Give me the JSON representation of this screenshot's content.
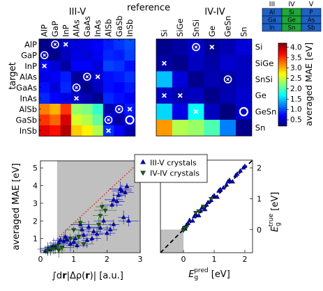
{
  "chart_data": [
    {
      "type": "heatmap",
      "panel": "III-V",
      "group_label": "III-V",
      "columns": [
        "AlP",
        "GaP",
        "InP",
        "AlAs",
        "GaAs",
        "InAs",
        "AlSb",
        "GaSb",
        "InSb"
      ],
      "rows": [
        "AlP",
        "GaP",
        "InP",
        "AlAs",
        "GaAs",
        "InAs",
        "AlSb",
        "GaSb",
        "InSb"
      ],
      "values": [
        [
          0.25,
          0.35,
          0.5,
          0.55,
          0.6,
          0.7,
          0.8,
          0.9,
          1.0
        ],
        [
          0.35,
          0.25,
          0.45,
          0.6,
          0.55,
          0.65,
          0.85,
          0.8,
          0.95
        ],
        [
          0.7,
          0.55,
          0.35,
          0.7,
          0.7,
          0.55,
          0.95,
          0.9,
          0.75
        ],
        [
          0.6,
          0.65,
          0.8,
          0.3,
          0.4,
          0.55,
          0.75,
          0.8,
          0.9
        ],
        [
          0.75,
          0.55,
          0.85,
          0.4,
          0.25,
          0.45,
          0.75,
          0.7,
          0.8
        ],
        [
          0.85,
          0.7,
          0.6,
          0.5,
          0.4,
          0.25,
          0.85,
          0.75,
          0.65
        ],
        [
          3.2,
          3.0,
          3.5,
          2.3,
          2.2,
          1.9,
          0.4,
          0.55,
          0.8
        ],
        [
          3.5,
          3.3,
          3.85,
          2.55,
          2.4,
          2.1,
          0.6,
          0.35,
          0.7
        ],
        [
          3.8,
          3.65,
          4.0,
          2.9,
          2.75,
          2.4,
          0.9,
          0.7,
          0.4
        ]
      ],
      "markers": [
        {
          "row": "AlP",
          "col": "GaP",
          "kind": "circle-cross"
        },
        {
          "row": "AlP",
          "col": "InP",
          "kind": "cross"
        },
        {
          "row": "GaP",
          "col": "AlP",
          "kind": "circle-cross"
        },
        {
          "row": "InP",
          "col": "AlP",
          "kind": "cross"
        },
        {
          "row": "AlAs",
          "col": "GaAs",
          "kind": "circle-cross"
        },
        {
          "row": "AlAs",
          "col": "InAs",
          "kind": "cross"
        },
        {
          "row": "GaAs",
          "col": "AlAs",
          "kind": "circle-cross"
        },
        {
          "row": "InAs",
          "col": "AlAs",
          "kind": "cross"
        },
        {
          "row": "AlSb",
          "col": "GaSb",
          "kind": "circle-cross"
        },
        {
          "row": "AlSb",
          "col": "InSb",
          "kind": "cross"
        },
        {
          "row": "GaSb",
          "col": "AlSb",
          "kind": "circle-cross"
        },
        {
          "row": "GaSb",
          "col": "InSb",
          "kind": "circle"
        },
        {
          "row": "InSb",
          "col": "AlSb",
          "kind": "cross"
        }
      ]
    },
    {
      "type": "heatmap",
      "panel": "IV-IV",
      "group_label": "IV-IV",
      "columns": [
        "Si",
        "SiGe",
        "SnSi",
        "Ge",
        "GeSn",
        "Sn"
      ],
      "rows": [
        "Si",
        "SiGe",
        "SnSi",
        "Ge",
        "GeSn",
        "Sn"
      ],
      "values": [
        [
          0.25,
          0.35,
          0.5,
          0.3,
          0.4,
          0.55
        ],
        [
          0.35,
          0.25,
          0.45,
          0.35,
          0.5,
          0.45
        ],
        [
          1.45,
          0.55,
          0.25,
          0.4,
          0.35,
          0.45
        ],
        [
          0.5,
          0.4,
          0.45,
          0.25,
          0.4,
          0.5
        ],
        [
          1.55,
          0.6,
          1.7,
          0.45,
          0.2,
          0.5
        ],
        [
          3.1,
          2.4,
          2.3,
          2.0,
          1.2,
          0.25
        ]
      ],
      "markers": [
        {
          "row": "Si",
          "col": "SnSi",
          "kind": "circle-cross"
        },
        {
          "row": "Si",
          "col": "Ge",
          "kind": "cross"
        },
        {
          "row": "SiGe",
          "col": "Si",
          "kind": "cross"
        },
        {
          "row": "SnSi",
          "col": "GeSn",
          "kind": "circle-cross"
        },
        {
          "row": "Ge",
          "col": "Si",
          "kind": "cross"
        },
        {
          "row": "Ge",
          "col": "SiGe",
          "kind": "cross"
        },
        {
          "row": "GeSn",
          "col": "SnSi",
          "kind": "cross"
        },
        {
          "row": "GeSn",
          "col": "Sn",
          "kind": "circle"
        }
      ],
      "xlabel": "reference",
      "ylabel": "target",
      "colorbar": {
        "label": "averaged MAE [eV]",
        "range": [
          0.2,
          4.2
        ],
        "ticks": [
          "0.5",
          "1.0",
          "1.5",
          "2.0",
          "2.5",
          "3.0",
          "3.5",
          "4.0"
        ]
      }
    },
    {
      "type": "scatter",
      "xlabel_parts": [
        "∫d",
        "r",
        "|Δρ(",
        "r",
        ")| [a.u.]"
      ],
      "ylabel": "averaged MAE [eV]",
      "xlim": [
        0,
        3
      ],
      "ylim": [
        0.2,
        5.4
      ],
      "xticks": [
        "0",
        "1",
        "2",
        "3"
      ],
      "yticks": [
        "1",
        "2",
        "3",
        "4",
        "5"
      ],
      "shaded_region": {
        "x_from": 0.5,
        "x_to": 3.0
      },
      "trend_line": {
        "style": "dotted",
        "color": "#e0301e",
        "from": [
          0.5,
          1.0
        ],
        "to": [
          2.9,
          5.2
        ]
      },
      "series": [
        {
          "name": "III-V crystals",
          "marker": "triangle-up",
          "color": "#0000cc",
          "points": [
            [
              0.15,
              0.3
            ],
            [
              0.22,
              0.4
            ],
            [
              0.3,
              0.35
            ],
            [
              0.35,
              0.55
            ],
            [
              0.4,
              0.6
            ],
            [
              0.45,
              0.5
            ],
            [
              0.55,
              0.75
            ],
            [
              0.6,
              0.9
            ],
            [
              0.7,
              0.85
            ],
            [
              0.75,
              1.1
            ],
            [
              0.8,
              0.95
            ],
            [
              0.9,
              0.7
            ],
            [
              1.0,
              0.8
            ],
            [
              1.05,
              1.0
            ],
            [
              1.1,
              0.6
            ],
            [
              1.2,
              1.8
            ],
            [
              1.25,
              1.5
            ],
            [
              1.3,
              1.2
            ],
            [
              1.4,
              0.9
            ],
            [
              1.45,
              1.65
            ],
            [
              1.55,
              1.0
            ],
            [
              1.6,
              1.4
            ],
            [
              1.7,
              1.25
            ],
            [
              1.8,
              1.6
            ],
            [
              1.9,
              2.0
            ],
            [
              2.0,
              1.3
            ],
            [
              2.1,
              1.5
            ],
            [
              2.2,
              1.8
            ],
            [
              2.15,
              2.9
            ],
            [
              2.2,
              3.2
            ],
            [
              2.3,
              3.1
            ],
            [
              2.35,
              3.45
            ],
            [
              2.4,
              3.8
            ],
            [
              2.45,
              3.7
            ],
            [
              2.55,
              3.6
            ],
            [
              2.6,
              3.95
            ],
            [
              2.5,
              2.2
            ],
            [
              2.65,
              2.0
            ]
          ]
        },
        {
          "name": "IV-IV crystals",
          "marker": "triangle-down",
          "color": "#186018",
          "points": [
            [
              0.2,
              0.3
            ],
            [
              0.3,
              0.45
            ],
            [
              0.4,
              0.4
            ],
            [
              0.5,
              0.6
            ],
            [
              0.55,
              0.35
            ],
            [
              0.65,
              0.5
            ],
            [
              0.9,
              1.0
            ],
            [
              1.0,
              1.5
            ],
            [
              1.15,
              1.1
            ],
            [
              1.2,
              1.9
            ],
            [
              1.3,
              0.7
            ],
            [
              1.75,
              1.8
            ],
            [
              1.8,
              2.3
            ],
            [
              1.85,
              2.8
            ],
            [
              1.95,
              2.6
            ]
          ]
        }
      ]
    },
    {
      "type": "scatter",
      "xlabel_parts": [
        "E",
        "g",
        "pred",
        " [eV]"
      ],
      "ylabel_parts": [
        "E",
        "g",
        "true",
        " [eV]"
      ],
      "xlim": [
        -0.75,
        2.25
      ],
      "ylim": [
        -0.75,
        2.25
      ],
      "xticks": [
        "0",
        "1",
        "2"
      ],
      "yticks": [
        "0",
        "1",
        "2"
      ],
      "shaded_region": {
        "x_from": -0.75,
        "x_to": 0,
        "y_from": -0.75,
        "y_to": 0
      },
      "parity_line": {
        "style": "dashed",
        "from": [
          -0.75,
          -0.75
        ],
        "to": [
          2.25,
          2.25
        ]
      },
      "series": [
        {
          "name": "III-V crystals",
          "marker": "triangle-up",
          "color": "#0000cc",
          "points": [
            [
              0.0,
              0.05
            ],
            [
              0.05,
              0.02
            ],
            [
              0.1,
              0.15
            ],
            [
              0.15,
              0.2
            ],
            [
              0.2,
              0.3
            ],
            [
              0.3,
              0.28
            ],
            [
              0.35,
              0.42
            ],
            [
              0.4,
              0.5
            ],
            [
              0.5,
              0.45
            ],
            [
              0.55,
              0.6
            ],
            [
              0.6,
              0.7
            ],
            [
              0.7,
              0.65
            ],
            [
              0.75,
              0.8
            ],
            [
              0.8,
              0.88
            ],
            [
              0.9,
              0.95
            ],
            [
              0.95,
              1.05
            ],
            [
              1.0,
              1.1
            ],
            [
              1.1,
              1.05
            ],
            [
              1.15,
              1.25
            ],
            [
              1.2,
              1.3
            ],
            [
              1.3,
              1.35
            ],
            [
              1.4,
              1.45
            ],
            [
              1.45,
              1.55
            ],
            [
              1.5,
              1.6
            ],
            [
              1.6,
              1.55
            ],
            [
              1.7,
              1.75
            ],
            [
              1.75,
              1.8
            ],
            [
              1.85,
              1.9
            ],
            [
              1.95,
              2.0
            ],
            [
              2.0,
              2.05
            ]
          ]
        },
        {
          "name": "IV-IV crystals",
          "marker": "triangle-down",
          "color": "#186018",
          "points": [
            [
              0.0,
              -0.02
            ],
            [
              0.03,
              0.05
            ],
            [
              0.1,
              0.08
            ],
            [
              0.4,
              0.55
            ],
            [
              0.5,
              0.6
            ],
            [
              0.65,
              0.75
            ],
            [
              0.9,
              1.0
            ]
          ]
        }
      ]
    }
  ],
  "periodic_table": {
    "headers": [
      "III",
      "IV",
      "V"
    ],
    "rows": [
      [
        "Al",
        "Si",
        "P"
      ],
      [
        "Ga",
        "Ge",
        "As"
      ],
      [
        "In",
        "Sn",
        "Sb"
      ]
    ],
    "colors": {
      "III": "#1d62c8",
      "IV": "#1ea83a",
      "V": "#1d62c8"
    }
  },
  "colormap": [
    "#00007f",
    "#0000ff",
    "#0080ff",
    "#00ffff",
    "#80ff80",
    "#ffff00",
    "#ff8000",
    "#ff0000",
    "#7f0000"
  ]
}
